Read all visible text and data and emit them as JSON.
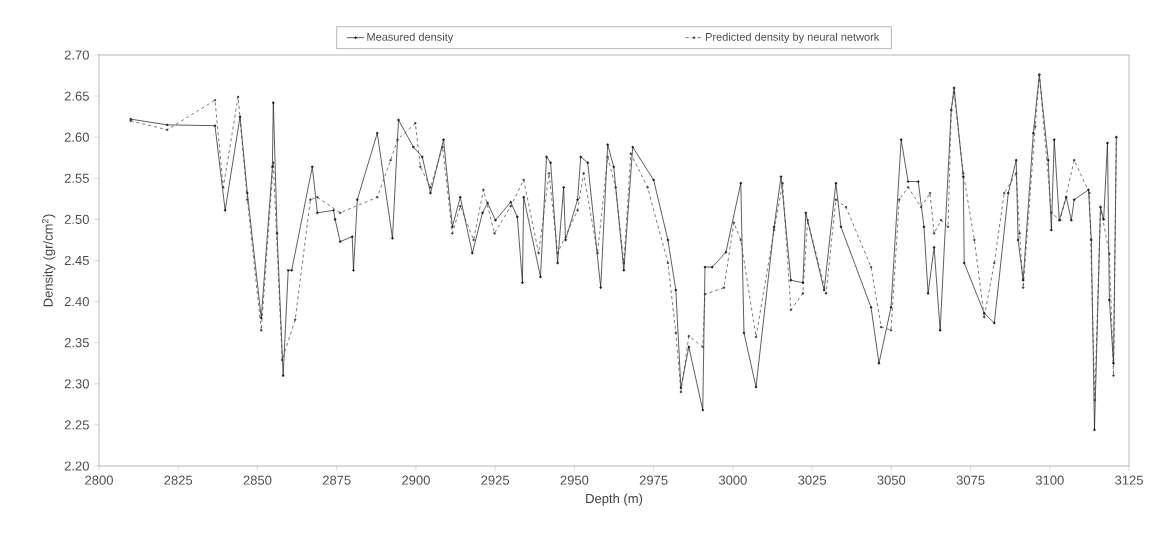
{
  "chart_data": {
    "type": "line",
    "xlabel": "Depth (m)",
    "ylabel": "Density (gr/cm$^{2}$)",
    "xlim": [
      2800,
      3125
    ],
    "xticks": [
      2800,
      2825,
      2850,
      2875,
      2900,
      2925,
      2950,
      2975,
      3000,
      3025,
      3050,
      3075,
      3100,
      3125
    ],
    "ylim": [
      2.2,
      2.7
    ],
    "yticks": [
      {
        "value": 2.2,
        "label": "2.20"
      },
      {
        "value": 2.25,
        "label": "2.25"
      },
      {
        "value": 2.3,
        "label": "2.30"
      },
      {
        "value": 2.35,
        "label": "2.35"
      },
      {
        "value": 2.4,
        "label": "2.40"
      },
      {
        "value": 2.45,
        "label": "2.45"
      },
      {
        "value": 2.5,
        "label": "2.50"
      },
      {
        "value": 2.55,
        "label": "2.55"
      },
      {
        "value": 2.6,
        "label": "2.60"
      },
      {
        "value": 2.65,
        "label": "2.65"
      },
      {
        "value": 2.7,
        "label": "2.70"
      }
    ],
    "legend": "top",
    "marker": "circle",
    "grid": false,
    "series": [
      {
        "name": "Measured density",
        "color": "#1a1a1a",
        "line_style": "solid",
        "x": [
          2810,
          2821.5,
          2836.6,
          2839.8,
          2844.5,
          2846.8,
          2851.2,
          2854.7,
          2855,
          2856.2,
          2858.1,
          2859.7,
          2860.8,
          2867.3,
          2868.9,
          2874,
          2874.5,
          2876.1,
          2879.9,
          2880.3,
          2881.5,
          2887.8,
          2892.6,
          2894.5,
          2899.2,
          2902,
          2904.6,
          2908.7,
          2911.5,
          2914,
          2917.8,
          2921,
          2922.6,
          2925.1,
          2929.9,
          2932,
          2933.6,
          2934,
          2939.3,
          2941.2,
          2942.5,
          2944.7,
          2946.6,
          2947.2,
          2951,
          2952,
          2954.2,
          2958.3,
          2960.5,
          2962.4,
          2965.6,
          2968.4,
          2975,
          2979.5,
          2982,
          2983.6,
          2986.1,
          2990.5,
          2991.2,
          2993.5,
          2997.8,
          3002.5,
          3003.5,
          3007.3,
          3013,
          3015.2,
          3018.3,
          3022.1,
          3023,
          3028.8,
          3032.5,
          3034.1,
          3043.6,
          3046.1,
          3049.9,
          3053.1,
          3055.3,
          3058.5,
          3060.3,
          3061.6,
          3063.5,
          3065.4,
          3068.9,
          3069.8,
          3072.7,
          3073,
          3079.3,
          3082.5,
          3086.9,
          3089.4,
          3090,
          3091.6,
          3094.8,
          3096.7,
          3099.5,
          3100.5,
          3101.4,
          3103,
          3105.2,
          3106.8,
          3107.7,
          3112.2,
          3113.1,
          3114.1,
          3116,
          3117,
          3118.2,
          3118.8,
          3120.1,
          3121
        ],
        "values": [
          2.622,
          2.615,
          2.614,
          2.511,
          2.625,
          2.532,
          2.38,
          2.564,
          2.642,
          2.483,
          2.31,
          2.438,
          2.438,
          2.564,
          2.508,
          2.511,
          2.5,
          2.473,
          2.479,
          2.438,
          2.524,
          2.605,
          2.477,
          2.621,
          2.588,
          2.576,
          2.532,
          2.597,
          2.491,
          2.527,
          2.459,
          2.508,
          2.52,
          2.499,
          2.521,
          2.503,
          2.423,
          2.527,
          2.43,
          2.576,
          2.569,
          2.447,
          2.539,
          2.475,
          2.524,
          2.576,
          2.569,
          2.417,
          2.591,
          2.564,
          2.438,
          2.588,
          2.548,
          2.475,
          2.414,
          2.295,
          2.345,
          2.268,
          2.442,
          2.442,
          2.46,
          2.544,
          2.362,
          2.296,
          2.491,
          2.552,
          2.426,
          2.423,
          2.508,
          2.414,
          2.544,
          2.491,
          2.393,
          2.325,
          2.393,
          2.597,
          2.546,
          2.546,
          2.491,
          2.41,
          2.466,
          2.365,
          2.633,
          2.66,
          2.552,
          2.447,
          2.386,
          2.374,
          2.532,
          2.572,
          2.475,
          2.426,
          2.605,
          2.676,
          2.572,
          2.487,
          2.597,
          2.499,
          2.527,
          2.499,
          2.524,
          2.536,
          2.475,
          2.244,
          2.515,
          2.5,
          2.593,
          2.402,
          2.325,
          2.6
        ]
      },
      {
        "name": "Predicted density by neural network",
        "color": "#404040",
        "line_style": "dashed",
        "x": [
          2810,
          2821.5,
          2836.6,
          2839.2,
          2843.9,
          2846.8,
          2851.2,
          2855,
          2857.8,
          2861.9,
          2866.7,
          2868.9,
          2876.1,
          2887.8,
          2892,
          2894.2,
          2899.8,
          2901.4,
          2904.6,
          2908.4,
          2911.5,
          2914,
          2918.2,
          2921.3,
          2924.8,
          2929.9,
          2934,
          2938.7,
          2942,
          2944.7,
          2951,
          2952.9,
          2957.3,
          2960.5,
          2963,
          2965.6,
          2967.8,
          2973.1,
          2979.5,
          2982,
          2983.6,
          2986.1,
          2990.5,
          2991.2,
          2997.2,
          3000.3,
          3002.5,
          3007.3,
          3013,
          3015.7,
          3018.3,
          3022.1,
          3023.6,
          3029.4,
          3032.5,
          3035.7,
          3043.6,
          3046.8,
          3049.9,
          3052.5,
          3055.3,
          3059.4,
          3062.2,
          3063.5,
          3065.7,
          3067.9,
          3068.9,
          3069.8,
          3072.7,
          3076.2,
          3079.3,
          3082.5,
          3085.6,
          3089.4,
          3090.5,
          3091.6,
          3095.4,
          3096.7,
          3100.5,
          3103.3,
          3107.7,
          3112.5,
          3114.2,
          3116,
          3118.8,
          3120.1,
          3121
        ],
        "values": [
          2.62,
          2.609,
          2.645,
          2.539,
          2.649,
          2.524,
          2.365,
          2.569,
          2.329,
          2.378,
          2.524,
          2.527,
          2.508,
          2.527,
          2.572,
          2.597,
          2.617,
          2.564,
          2.539,
          2.588,
          2.483,
          2.516,
          2.475,
          2.536,
          2.483,
          2.516,
          2.548,
          2.459,
          2.556,
          2.459,
          2.511,
          2.556,
          2.459,
          2.576,
          2.539,
          2.447,
          2.58,
          2.539,
          2.447,
          2.362,
          2.29,
          2.358,
          2.345,
          2.409,
          2.417,
          2.496,
          2.475,
          2.357,
          2.487,
          2.544,
          2.39,
          2.41,
          2.499,
          2.41,
          2.524,
          2.515,
          2.442,
          2.369,
          2.365,
          2.524,
          2.539,
          2.515,
          2.532,
          2.483,
          2.499,
          2.491,
          2.633,
          2.654,
          2.556,
          2.475,
          2.381,
          2.447,
          2.532,
          2.556,
          2.483,
          2.417,
          2.613,
          2.676,
          2.508,
          2.499,
          2.572,
          2.532,
          2.28,
          2.515,
          2.458,
          2.31,
          2.6
        ]
      }
    ]
  }
}
